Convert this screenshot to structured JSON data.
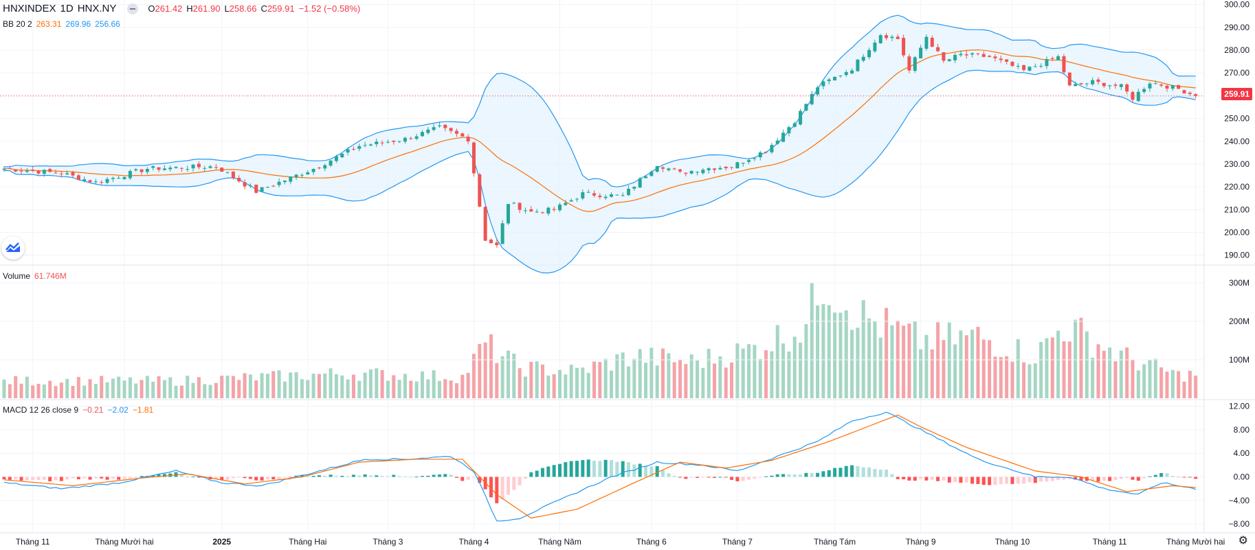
{
  "header": {
    "symbol": "HNXINDEX",
    "interval": "1D",
    "exchange": "HNX.NY",
    "ohlc": {
      "o_label": "O",
      "o": "261.42",
      "h_label": "H",
      "h": "261.90",
      "l_label": "L",
      "l": "258.66",
      "c_label": "C",
      "c": "259.91",
      "change": "−1.52 (−0.58%)"
    },
    "bb": {
      "label": "BB 20 2",
      "basis": "263.31",
      "upper": "269.96",
      "lower": "256.66"
    },
    "volume": {
      "label": "Volume",
      "value": "61.746M"
    },
    "macd": {
      "label": "MACD 12 26 close 9",
      "hist": "−0.21",
      "macd": "−2.02",
      "signal": "−1.81"
    }
  },
  "last_price_label": "259.91",
  "colors": {
    "up": "#26a69a",
    "down": "#ef5350",
    "bb_band": "#2196f3",
    "bb_basis": "#ff6d00",
    "bb_fill": "#e3f2fd",
    "macd_line": "#2196f3",
    "signal_line": "#ff6d00",
    "vol_up": "#a5d6c3",
    "vol_down": "#f4a3a8"
  },
  "chart_data": [
    {
      "type": "candlestick",
      "title": "HNXINDEX · 1D · HNX.NY",
      "y_ticks": [
        "300.00",
        "290.00",
        "280.00",
        "270.00",
        "260.00",
        "250.00",
        "240.00",
        "230.00",
        "220.00",
        "210.00",
        "200.00",
        "190.00"
      ],
      "y_range": [
        186,
        302
      ],
      "x_ticks": [
        "Tháng 11",
        "Tháng Mười hai",
        "2025",
        "Tháng Hai",
        "Tháng 3",
        "Tháng 4",
        "Tháng Năm",
        "Tháng 6",
        "Tháng 7",
        "Tháng Tám",
        "Tháng 9",
        "Tháng 10",
        "Tháng 11",
        "Tháng Mười hai"
      ],
      "x_tick_bar_index": [
        5,
        21,
        38,
        53,
        67,
        82,
        97,
        113,
        128,
        145,
        160,
        176,
        193,
        208
      ],
      "keypoints": [
        {
          "i": 0,
          "close": 228
        },
        {
          "i": 10,
          "close": 226
        },
        {
          "i": 16,
          "close": 222
        },
        {
          "i": 25,
          "close": 228
        },
        {
          "i": 37,
          "close": 229
        },
        {
          "i": 44,
          "close": 218
        },
        {
          "i": 54,
          "close": 228
        },
        {
          "i": 62,
          "close": 238
        },
        {
          "i": 70,
          "close": 241
        },
        {
          "i": 76,
          "close": 246
        },
        {
          "i": 81,
          "close": 241
        },
        {
          "i": 84,
          "close": 197
        },
        {
          "i": 86,
          "close": 194
        },
        {
          "i": 88,
          "close": 213
        },
        {
          "i": 92,
          "close": 209
        },
        {
          "i": 96,
          "close": 210
        },
        {
          "i": 101,
          "close": 217
        },
        {
          "i": 108,
          "close": 216
        },
        {
          "i": 114,
          "close": 230
        },
        {
          "i": 118,
          "close": 226
        },
        {
          "i": 122,
          "close": 228
        },
        {
          "i": 127,
          "close": 229
        },
        {
          "i": 133,
          "close": 236
        },
        {
          "i": 138,
          "close": 249
        },
        {
          "i": 142,
          "close": 264
        },
        {
          "i": 148,
          "close": 272
        },
        {
          "i": 153,
          "close": 287
        },
        {
          "i": 156,
          "close": 285
        },
        {
          "i": 158,
          "close": 271
        },
        {
          "i": 161,
          "close": 286
        },
        {
          "i": 164,
          "close": 275
        },
        {
          "i": 167,
          "close": 278
        },
        {
          "i": 172,
          "close": 277
        },
        {
          "i": 178,
          "close": 271
        },
        {
          "i": 184,
          "close": 277
        },
        {
          "i": 186,
          "close": 264
        },
        {
          "i": 190,
          "close": 266
        },
        {
          "i": 195,
          "close": 264
        },
        {
          "i": 197,
          "close": 259
        },
        {
          "i": 200,
          "close": 266
        },
        {
          "i": 205,
          "close": 263
        },
        {
          "i": 208,
          "close": 260
        }
      ],
      "last_close": 259.91
    },
    {
      "type": "bar",
      "title": "Volume",
      "y_ticks": [
        "300M",
        "200M",
        "100M"
      ],
      "y_range": [
        0,
        330
      ],
      "values_millions_keypoints": [
        {
          "i": 0,
          "v": 45
        },
        {
          "i": 30,
          "v": 45
        },
        {
          "i": 60,
          "v": 65
        },
        {
          "i": 80,
          "v": 55
        },
        {
          "i": 84,
          "v": 140
        },
        {
          "i": 90,
          "v": 80
        },
        {
          "i": 100,
          "v": 70
        },
        {
          "i": 110,
          "v": 110
        },
        {
          "i": 120,
          "v": 95
        },
        {
          "i": 130,
          "v": 125
        },
        {
          "i": 140,
          "v": 190
        },
        {
          "i": 143,
          "v": 320
        },
        {
          "i": 150,
          "v": 210
        },
        {
          "i": 160,
          "v": 150
        },
        {
          "i": 170,
          "v": 160
        },
        {
          "i": 180,
          "v": 110
        },
        {
          "i": 185,
          "v": 190
        },
        {
          "i": 195,
          "v": 110
        },
        {
          "i": 205,
          "v": 60
        },
        {
          "i": 208,
          "v": 62
        }
      ],
      "last_value": "61.746M"
    },
    {
      "type": "line",
      "title": "MACD 12 26 close 9",
      "y_ticks": [
        "12.00",
        "8.00",
        "4.00",
        "0.00",
        "−4.00",
        "−8.00"
      ],
      "y_range": [
        -9.5,
        13
      ],
      "macd_keypoints": [
        {
          "i": 0,
          "v": -1
        },
        {
          "i": 10,
          "v": -2
        },
        {
          "i": 20,
          "v": -1
        },
        {
          "i": 30,
          "v": 1
        },
        {
          "i": 38,
          "v": -1
        },
        {
          "i": 45,
          "v": -1.5
        },
        {
          "i": 55,
          "v": 1
        },
        {
          "i": 63,
          "v": 3
        },
        {
          "i": 70,
          "v": 3
        },
        {
          "i": 78,
          "v": 3.5
        },
        {
          "i": 82,
          "v": 1
        },
        {
          "i": 86,
          "v": -7.5
        },
        {
          "i": 90,
          "v": -7
        },
        {
          "i": 98,
          "v": -3.5
        },
        {
          "i": 106,
          "v": 0
        },
        {
          "i": 114,
          "v": 2.5
        },
        {
          "i": 122,
          "v": 2
        },
        {
          "i": 128,
          "v": 1
        },
        {
          "i": 135,
          "v": 3.5
        },
        {
          "i": 142,
          "v": 6
        },
        {
          "i": 148,
          "v": 9.5
        },
        {
          "i": 154,
          "v": 11
        },
        {
          "i": 158,
          "v": 9
        },
        {
          "i": 162,
          "v": 7
        },
        {
          "i": 170,
          "v": 3
        },
        {
          "i": 180,
          "v": 0
        },
        {
          "i": 186,
          "v": 0
        },
        {
          "i": 192,
          "v": -2
        },
        {
          "i": 198,
          "v": -3
        },
        {
          "i": 202,
          "v": -1
        },
        {
          "i": 208,
          "v": -2
        }
      ],
      "signal_keypoints": [
        {
          "i": 0,
          "v": -0.5
        },
        {
          "i": 12,
          "v": -1.5
        },
        {
          "i": 24,
          "v": -0.2
        },
        {
          "i": 32,
          "v": 0.5
        },
        {
          "i": 42,
          "v": -1.2
        },
        {
          "i": 52,
          "v": 0
        },
        {
          "i": 62,
          "v": 2.5
        },
        {
          "i": 72,
          "v": 3
        },
        {
          "i": 80,
          "v": 3
        },
        {
          "i": 86,
          "v": -3
        },
        {
          "i": 92,
          "v": -7
        },
        {
          "i": 100,
          "v": -5.5
        },
        {
          "i": 110,
          "v": -1
        },
        {
          "i": 118,
          "v": 2.5
        },
        {
          "i": 126,
          "v": 1.5
        },
        {
          "i": 134,
          "v": 2.8
        },
        {
          "i": 144,
          "v": 6
        },
        {
          "i": 152,
          "v": 9
        },
        {
          "i": 156,
          "v": 10.5
        },
        {
          "i": 160,
          "v": 8.5
        },
        {
          "i": 168,
          "v": 5
        },
        {
          "i": 180,
          "v": 1
        },
        {
          "i": 188,
          "v": 0
        },
        {
          "i": 196,
          "v": -2.5
        },
        {
          "i": 204,
          "v": -1.5
        },
        {
          "i": 208,
          "v": -1.8
        }
      ],
      "last_values": {
        "histogram": -0.21,
        "macd": -2.02,
        "signal": -1.81
      }
    }
  ]
}
